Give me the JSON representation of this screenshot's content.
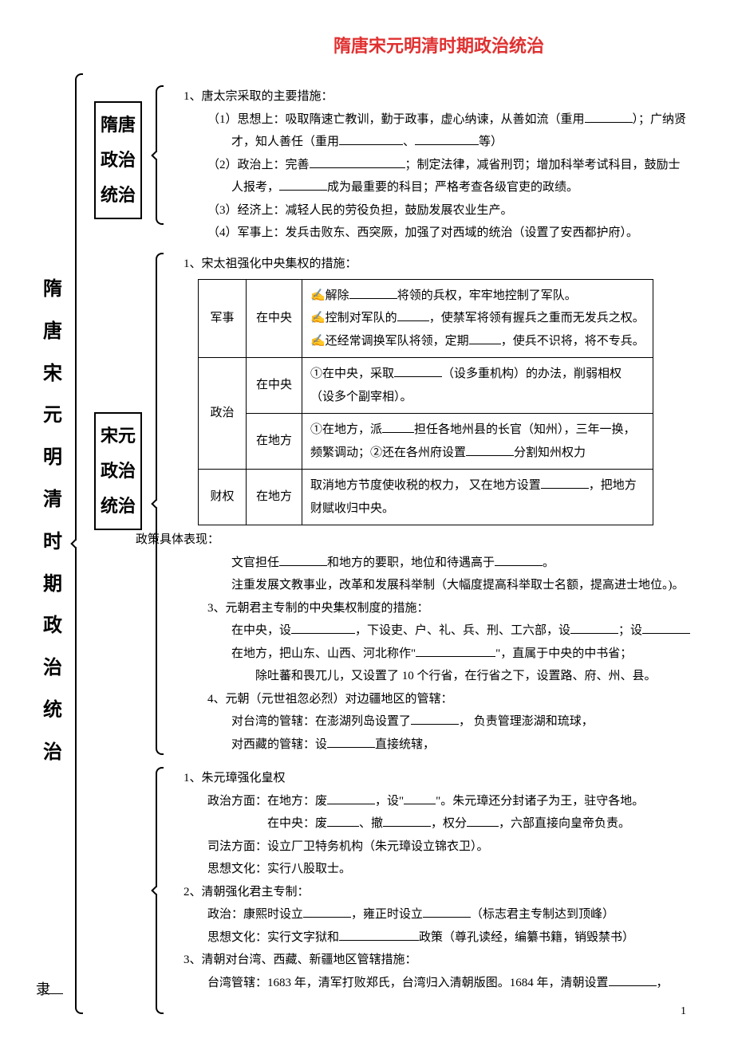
{
  "title": "隋唐宋元明清时期政治统治",
  "left_column_chars": [
    "隋",
    "唐",
    "宋",
    "元",
    "明",
    "清",
    "时",
    "期",
    "政",
    "治",
    "统",
    "治"
  ],
  "slave_char": "隶",
  "section1": {
    "label_lines": [
      "隋唐",
      "政治",
      "统治"
    ],
    "heading": "1、唐太宗采取的主要措施：",
    "p1a": "（1）思想上：吸取隋速亡教训，勤于政事，虚心纳谏，从善如流（重用",
    "p1b": "）；广纳贤",
    "p1c": "才，知人善任（重用",
    "p1d": "、",
    "p1e": "等）",
    "p2a": "（2）政治上：完善",
    "p2b": "；制定法律，减省刑罚；增加科举考试科目，鼓励士",
    "p2c": "人报考，",
    "p2d": "成为最重要的科目；严格考查各级官吏的政绩。",
    "p3": "（3）经济上：减轻人民的劳役负担，鼓励发展农业生产。",
    "p4": "（4）军事上：发兵击败东、西突厥，加强了对西域的统治（设置了安西都护府）。"
  },
  "section2": {
    "label_lines": [
      "宋元",
      "政治",
      "统治"
    ],
    "heading": "1、宋太祖强化中央集权的措施：",
    "table": {
      "rows": [
        {
          "cat": "军事",
          "loc": "在中央",
          "body_pre": [
            "✍解除",
            "将领的兵权，牢牢地控制了军队。",
            "✍控制对军队的",
            "，使禁军将领有握兵之重而无发兵之权。",
            "✍还经常调换军队将领，定期",
            "，使兵不识将，将不专兵。"
          ]
        },
        {
          "cat": "政治",
          "loc": "在中央",
          "body": [
            "①在中央，采取",
            "（设多重机构）的办法，削弱相权（设多个副宰相）。"
          ]
        },
        {
          "cat": "",
          "loc": "在地方",
          "body": [
            "①在地方，派",
            "担任各地州县的长官（知州），三年一换，频繁调动；②还在各州府设置",
            "分割知州权力"
          ]
        },
        {
          "cat": "财权",
          "loc": "在地方",
          "body": [
            "取消地方节度使收税的权力， 又在地方设置",
            "，把地方财赋收归中央。"
          ]
        }
      ]
    },
    "after_table_label": "政策具体表现：",
    "at1a": "文官担任",
    "at1b": "和地方的要职，地位和待遇高于",
    "at1c": "。",
    "at2": "注重发展文教事业，改革和发展科举制（大幅度提高科举取士名额，提高进士地位。)。",
    "h3": "3、元朝君主专制的中央集权制度的措施：",
    "h3_1a": "在中央，设",
    "h3_1b": "，下设吏、户、礼、兵、刑、工六部，设",
    "h3_1c": "；设",
    "h3_2a": "在地方，把山东、山西、河北称作\"",
    "h3_2b": "\"，直属于中央的中书省；",
    "h3_3": "除吐蕃和畏兀儿，又设置了 10 个行省，在行省之下，设置路、府、州、县。",
    "h4": "4、元朝（元世祖忽必烈）对边疆地区的管辖：",
    "h4_1a": "对台湾的管辖：在澎湖列岛设置了",
    "h4_1b": "， 负责管理澎湖和琉球，",
    "h4_2a": "对西藏的管辖：设",
    "h4_2b": "直接统辖，"
  },
  "section3": {
    "h1": "1、朱元璋强化皇权",
    "h1_1a": "政治方面：在地方：废",
    "h1_1b": "，设\"",
    "h1_1c": "\"。朱元璋还分封诸子为王，驻守各地。",
    "h1_2a": "在中央：废",
    "h1_2b": "、撤",
    "h1_2c": "，权分",
    "h1_2d": "，六部直接向皇帝负责。",
    "h1_3": "司法方面：设立厂卫特务机构（朱元璋设立锦衣卫）。",
    "h1_4": "思想文化：实行八股取士。",
    "h2": "2、清朝强化君主专制：",
    "h2_1a": "政治：康熙时设立",
    "h2_1b": "，雍正时设立",
    "h2_1c": "（标志君主专制达到顶峰）",
    "h2_2a": "思想文化：实行文字狱和",
    "h2_2b": "政策（尊孔读经，编纂书籍，销毁禁书）",
    "h3": "3、清朝对台湾、西藏、新疆地区管辖措施：",
    "h3_1a": "台湾管辖：1683 年，清军打败郑氏，台湾归入清朝版图。1684 年，清朝设置",
    "h3_1b": "，"
  },
  "page_number": "1",
  "colors": {
    "title": "#e03030",
    "text": "#000000",
    "bg": "#ffffff"
  },
  "typography": {
    "title_size_pt": 16,
    "body_size_pt": 11,
    "left_col_size_pt": 18,
    "font_family": "SimSun"
  }
}
